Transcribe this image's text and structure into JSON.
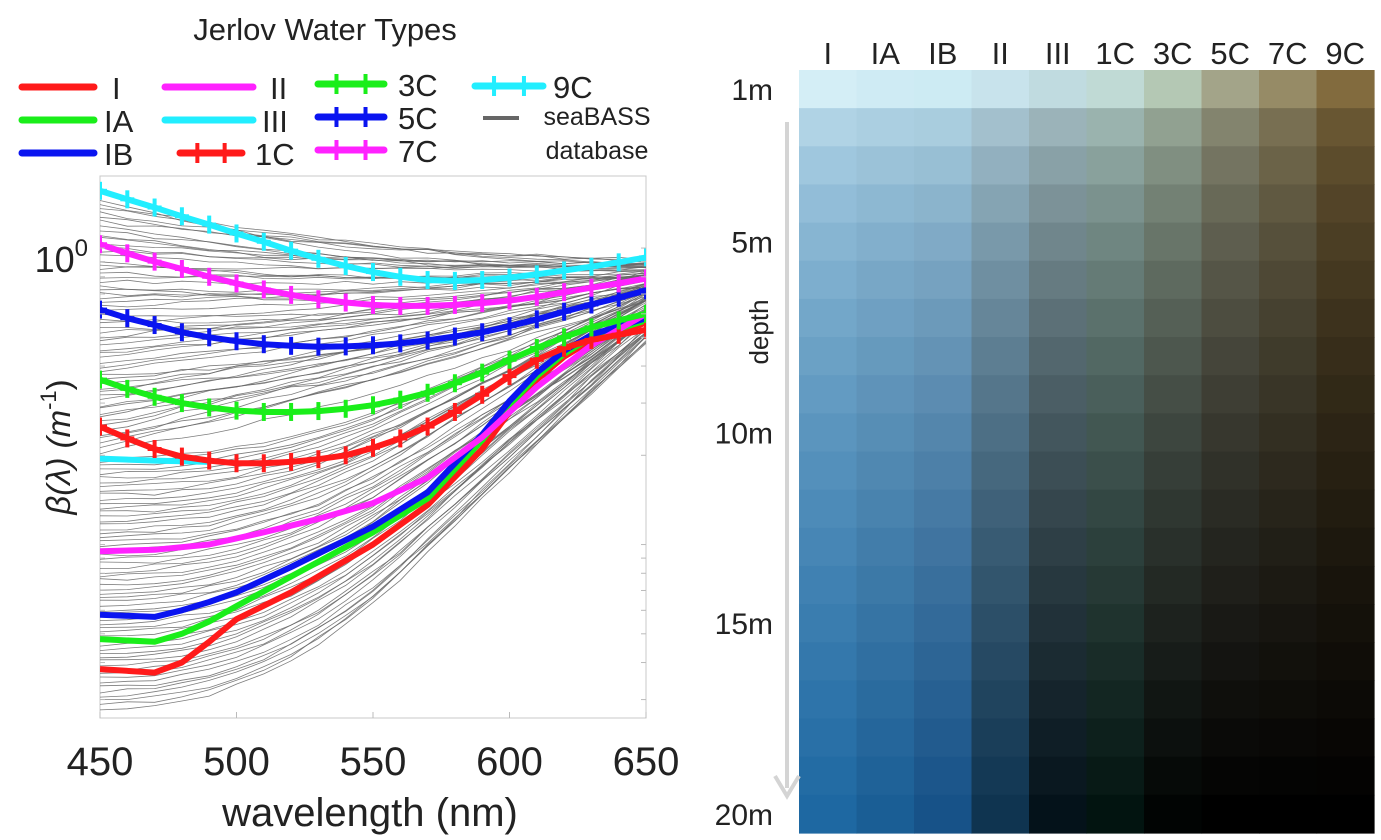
{
  "chart_data": [
    {
      "type": "line",
      "title": "Jerlov Water Types",
      "xlabel": "wavelength (nm)",
      "ylabel_parts": [
        "β(λ) (m",
        "-1",
        ")"
      ],
      "yscale": "log",
      "xlim": [
        450,
        650
      ],
      "ylim": [
        0.026,
        1.75
      ],
      "x_ticks": [
        450,
        500,
        550,
        600,
        650
      ],
      "y_tick_label": {
        "value": 1,
        "base": "10",
        "exp": "0"
      },
      "grid": false,
      "legend_position": "top",
      "background_series": {
        "name_lines": [
          "seaBASS",
          "database"
        ],
        "color": "#666666",
        "count": 120
      },
      "series": [
        {
          "name": "I",
          "color": "#ff1a1a",
          "style": "solid",
          "x": [
            450,
            470,
            480,
            490,
            500,
            520,
            550,
            570,
            590,
            600,
            610,
            620,
            630,
            650
          ],
          "y": [
            0.038,
            0.037,
            0.04,
            0.047,
            0.056,
            0.069,
            0.1,
            0.136,
            0.21,
            0.28,
            0.36,
            0.43,
            0.49,
            0.56
          ]
        },
        {
          "name": "IA",
          "color": "#1aee1a",
          "style": "solid",
          "x": [
            450,
            470,
            480,
            490,
            500,
            520,
            550,
            570,
            590,
            600,
            610,
            620,
            630,
            650
          ],
          "y": [
            0.048,
            0.047,
            0.05,
            0.055,
            0.062,
            0.078,
            0.11,
            0.143,
            0.225,
            0.295,
            0.37,
            0.44,
            0.5,
            0.57
          ]
        },
        {
          "name": "IB",
          "color": "#0a14f0",
          "style": "solid",
          "x": [
            450,
            470,
            480,
            490,
            500,
            520,
            550,
            570,
            590,
            600,
            610,
            620,
            630,
            650
          ],
          "y": [
            0.058,
            0.057,
            0.06,
            0.064,
            0.069,
            0.084,
            0.115,
            0.15,
            0.235,
            0.305,
            0.38,
            0.45,
            0.51,
            0.58
          ]
        },
        {
          "name": "II",
          "color": "#ff22ff",
          "style": "solid",
          "x": [
            450,
            470,
            490,
            510,
            530,
            550,
            570,
            590,
            610,
            630,
            650
          ],
          "y": [
            0.095,
            0.096,
            0.1,
            0.11,
            0.122,
            0.138,
            0.168,
            0.23,
            0.34,
            0.47,
            0.6
          ]
        },
        {
          "name": "III",
          "color": "#22eeff",
          "style": "solid",
          "x": [
            450,
            470,
            490
          ],
          "y": [
            0.195,
            0.192,
            0.19
          ]
        },
        {
          "name": "1C",
          "color": "#ff1a1a",
          "style": "marker",
          "x": [
            450,
            460,
            470,
            480,
            490,
            500,
            510,
            520,
            530,
            540,
            550,
            560,
            570,
            580,
            590,
            600,
            610,
            620,
            630,
            640,
            650
          ],
          "y": [
            0.25,
            0.228,
            0.21,
            0.198,
            0.192,
            0.188,
            0.188,
            0.19,
            0.194,
            0.2,
            0.212,
            0.228,
            0.25,
            0.28,
            0.32,
            0.37,
            0.42,
            0.46,
            0.49,
            0.51,
            0.53
          ]
        },
        {
          "name": "3C",
          "color": "#1aee1a",
          "style": "marker",
          "x": [
            450,
            460,
            470,
            480,
            490,
            500,
            510,
            520,
            530,
            540,
            550,
            560,
            570,
            580,
            590,
            600,
            610,
            620,
            630,
            640,
            650
          ],
          "y": [
            0.36,
            0.335,
            0.315,
            0.3,
            0.29,
            0.283,
            0.28,
            0.28,
            0.282,
            0.287,
            0.295,
            0.308,
            0.325,
            0.35,
            0.38,
            0.42,
            0.46,
            0.5,
            0.54,
            0.57,
            0.6
          ]
        },
        {
          "name": "5C",
          "color": "#0a14f0",
          "style": "marker",
          "x": [
            450,
            460,
            470,
            480,
            490,
            500,
            510,
            520,
            530,
            540,
            550,
            560,
            570,
            580,
            590,
            600,
            610,
            620,
            630,
            640,
            650
          ],
          "y": [
            0.62,
            0.58,
            0.55,
            0.52,
            0.5,
            0.485,
            0.474,
            0.468,
            0.465,
            0.466,
            0.47,
            0.477,
            0.488,
            0.503,
            0.52,
            0.545,
            0.575,
            0.61,
            0.645,
            0.68,
            0.72
          ]
        },
        {
          "name": "7C",
          "color": "#ff22ff",
          "style": "marker",
          "x": [
            450,
            460,
            470,
            480,
            490,
            500,
            510,
            520,
            530,
            540,
            550,
            560,
            570,
            580,
            590,
            600,
            610,
            620,
            630,
            640,
            650
          ],
          "y": [
            1.03,
            0.96,
            0.9,
            0.85,
            0.8,
            0.76,
            0.725,
            0.695,
            0.672,
            0.655,
            0.643,
            0.638,
            0.638,
            0.643,
            0.652,
            0.665,
            0.685,
            0.71,
            0.735,
            0.76,
            0.79
          ]
        },
        {
          "name": "9C",
          "color": "#22eeff",
          "style": "marker",
          "x": [
            450,
            460,
            470,
            480,
            490,
            500,
            510,
            520,
            530,
            540,
            550,
            560,
            570,
            580,
            590,
            600,
            610,
            620,
            630,
            640,
            650
          ],
          "y": [
            1.56,
            1.46,
            1.37,
            1.28,
            1.2,
            1.12,
            1.05,
            0.98,
            0.92,
            0.87,
            0.83,
            0.8,
            0.78,
            0.775,
            0.78,
            0.795,
            0.815,
            0.84,
            0.865,
            0.895,
            0.93
          ]
        }
      ]
    },
    {
      "type": "heatmap",
      "columns": [
        "I",
        "IA",
        "IB",
        "II",
        "III",
        "1C",
        "3C",
        "5C",
        "7C",
        "9C"
      ],
      "row_labels": [
        {
          "label": "1m",
          "depth": 1
        },
        {
          "label": "5m",
          "depth": 5
        },
        {
          "label": "10m",
          "depth": 10
        },
        {
          "label": "15m",
          "depth": 15
        },
        {
          "label": "20m",
          "depth": 20
        }
      ],
      "depths": [
        1,
        2,
        3,
        4,
        5,
        6,
        7,
        8,
        9,
        10,
        11,
        12,
        13,
        14,
        15,
        16,
        17,
        18,
        19,
        20
      ],
      "axis_label": "depth",
      "surface_colors": [
        "#d4eef6",
        "#cfebf4",
        "#cdebf3",
        "#c8e3ec",
        "#c0dbe0",
        "#c0dad5",
        "#b4c8b4",
        "#a3a489",
        "#968b66",
        "#826b3e"
      ],
      "deep_colors": [
        "#1e68a2",
        "#1a5e95",
        "#175288",
        "#0f3450",
        "#04121a",
        "#021410",
        "#010403",
        "#000000",
        "#000000",
        "#000000"
      ]
    }
  ]
}
